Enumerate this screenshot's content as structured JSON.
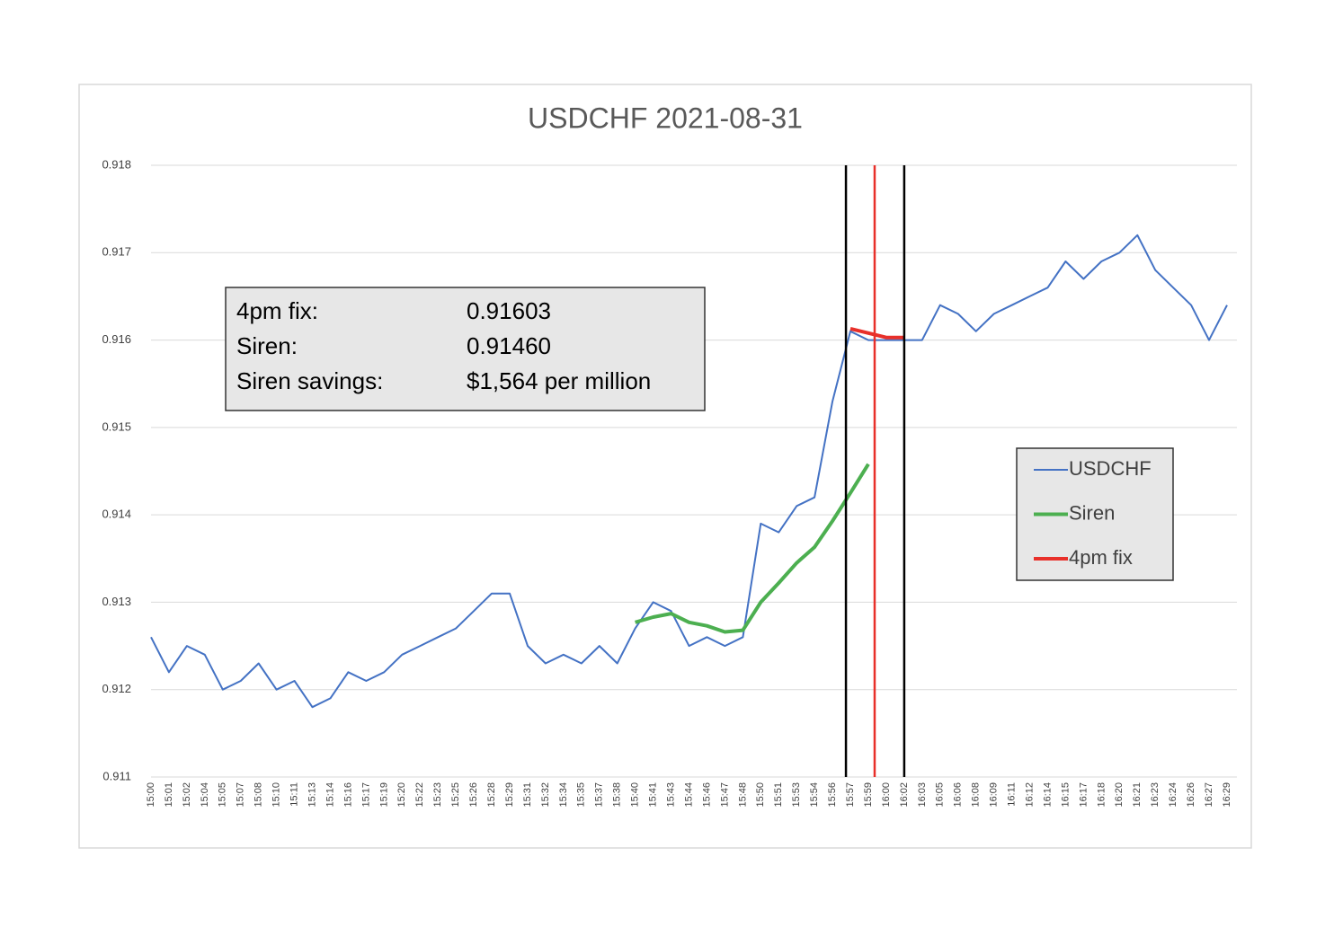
{
  "chart_data": {
    "type": "line",
    "title": "USDCHF 2021-08-31",
    "categories": [
      "15:00",
      "15:01",
      "15:02",
      "15:04",
      "15:05",
      "15:07",
      "15:08",
      "15:10",
      "15:11",
      "15:13",
      "15:14",
      "15:16",
      "15:17",
      "15:19",
      "15:20",
      "15:22",
      "15:23",
      "15:25",
      "15:26",
      "15:28",
      "15:29",
      "15:31",
      "15:32",
      "15:34",
      "15:35",
      "15:37",
      "15:38",
      "15:40",
      "15:41",
      "15:43",
      "15:44",
      "15:46",
      "15:47",
      "15:48",
      "15:50",
      "15:51",
      "15:53",
      "15:54",
      "15:56",
      "15:57",
      "15:59",
      "16:00",
      "16:02",
      "16:03",
      "16:05",
      "16:06",
      "16:08",
      "16:09",
      "16:11",
      "16:12",
      "16:14",
      "16:15",
      "16:17",
      "16:18",
      "16:20",
      "16:21",
      "16:23",
      "16:24",
      "16:26",
      "16:27",
      "16:29"
    ],
    "series": [
      {
        "name": "USDCHF",
        "color": "#4472c4",
        "width": 2,
        "values": [
          0.9126,
          0.9122,
          0.9125,
          0.9124,
          0.912,
          0.9121,
          0.9123,
          0.912,
          0.9121,
          0.9118,
          0.9119,
          0.9122,
          0.9121,
          0.9122,
          0.9124,
          0.9125,
          0.9126,
          0.9127,
          0.9129,
          0.9131,
          0.9131,
          0.9125,
          0.9123,
          0.9124,
          0.9123,
          0.9125,
          0.9123,
          0.9127,
          0.913,
          0.9129,
          0.9125,
          0.9126,
          0.9125,
          0.9126,
          0.9139,
          0.9138,
          0.9141,
          0.9142,
          0.9153,
          0.9161,
          0.916,
          0.916,
          0.916,
          0.916,
          0.9164,
          0.9163,
          0.9161,
          0.9163,
          0.9164,
          0.9165,
          0.9166,
          0.9169,
          0.9167,
          0.9169,
          0.917,
          0.9172,
          0.9168,
          0.9166,
          0.9164,
          0.916,
          0.9164
        ]
      },
      {
        "name": "Siren",
        "color": "#4caf50",
        "width": 4,
        "values": [
          null,
          null,
          null,
          null,
          null,
          null,
          null,
          null,
          null,
          null,
          null,
          null,
          null,
          null,
          null,
          null,
          null,
          null,
          null,
          null,
          null,
          null,
          null,
          null,
          null,
          null,
          null,
          0.91277,
          0.91283,
          0.91287,
          0.91277,
          0.91273,
          0.91266,
          0.91268,
          0.913,
          0.91322,
          0.91345,
          0.91363,
          0.91393,
          0.91425,
          0.91458,
          null,
          null,
          null,
          null,
          null,
          null,
          null,
          null,
          null,
          null,
          null,
          null,
          null,
          null,
          null,
          null,
          null,
          null,
          null,
          null
        ]
      },
      {
        "name": "4pm fix",
        "color": "#e8302a",
        "width": 4,
        "values": [
          null,
          null,
          null,
          null,
          null,
          null,
          null,
          null,
          null,
          null,
          null,
          null,
          null,
          null,
          null,
          null,
          null,
          null,
          null,
          null,
          null,
          null,
          null,
          null,
          null,
          null,
          null,
          null,
          null,
          null,
          null,
          null,
          null,
          null,
          null,
          null,
          null,
          null,
          null,
          0.91613,
          0.91608,
          0.91603,
          0.91603,
          null,
          null,
          null,
          null,
          null,
          null,
          null,
          null,
          null,
          null,
          null,
          null,
          null,
          null,
          null,
          null,
          null,
          null
        ]
      }
    ],
    "vlines": [
      {
        "x": 38.75,
        "color": "#000000"
      },
      {
        "x": 40.35,
        "color": "#e8302a"
      },
      {
        "x": 42,
        "color": "#000000"
      }
    ],
    "ylim": [
      0.911,
      0.918
    ],
    "yticks": [
      0.911,
      0.912,
      0.913,
      0.914,
      0.915,
      0.916,
      0.917,
      0.918
    ],
    "grid": true,
    "legend": "right",
    "annotation": {
      "rows": [
        [
          "4pm fix:",
          "0.91603"
        ],
        [
          "Siren:",
          "0.91460"
        ],
        [
          "Siren savings:",
          "$1,564 per million"
        ]
      ]
    }
  }
}
